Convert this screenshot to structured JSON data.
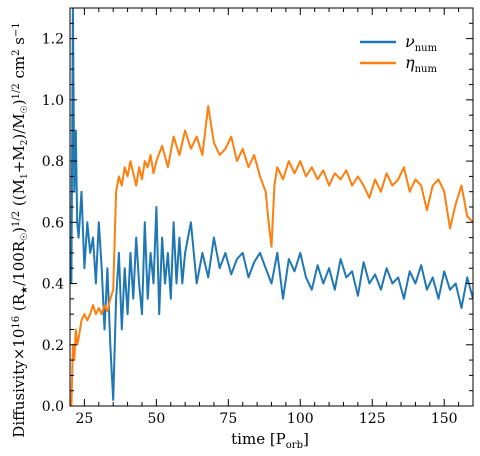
{
  "chart_data": {
    "type": "line",
    "xlabel_main": "time [P",
    "xlabel_sub": "orb",
    "xlabel_end": "]",
    "ylabel": "Diffusivity×10¹⁶ (R★/100R☉)^1/2 ((M₁+M₂)/M☉)^1/2 cm² s⁻¹",
    "xlim": [
      20,
      160
    ],
    "ylim": [
      0.0,
      1.3
    ],
    "xticks": [
      25,
      50,
      75,
      100,
      125,
      150
    ],
    "yticks": [
      0.0,
      0.2,
      0.4,
      0.6,
      0.8,
      1.0,
      1.2
    ],
    "legend_position": "top-right",
    "series": [
      {
        "name": "ν_num",
        "label_main": "ν",
        "label_sub": "num",
        "color": "#1f77b4",
        "x": [
          20.5,
          21,
          21.5,
          22,
          22.5,
          23,
          24,
          25,
          26,
          27,
          28,
          29,
          30,
          31,
          32,
          33,
          34,
          35,
          36,
          37,
          38,
          39,
          40,
          41,
          42,
          43,
          44,
          45,
          46,
          47,
          48,
          49,
          50,
          51,
          52,
          53,
          54,
          55,
          56,
          57,
          58,
          59,
          60,
          62,
          64,
          66,
          68,
          70,
          72,
          74,
          76,
          78,
          80,
          82,
          84,
          86,
          88,
          90,
          92,
          94,
          96,
          98,
          100,
          102,
          104,
          106,
          108,
          110,
          112,
          114,
          116,
          118,
          120,
          122,
          124,
          126,
          128,
          130,
          132,
          134,
          136,
          138,
          140,
          142,
          144,
          146,
          148,
          150,
          152,
          154,
          156,
          158,
          160
        ],
        "y": [
          0.4,
          1.3,
          0.7,
          0.9,
          0.6,
          0.55,
          0.7,
          0.45,
          0.6,
          0.5,
          0.55,
          0.4,
          0.6,
          0.45,
          0.25,
          0.45,
          0.2,
          0.02,
          0.35,
          0.5,
          0.25,
          0.45,
          0.3,
          0.5,
          0.35,
          0.55,
          0.4,
          0.3,
          0.6,
          0.35,
          0.5,
          0.4,
          0.65,
          0.3,
          0.55,
          0.4,
          0.5,
          0.35,
          0.6,
          0.4,
          0.55,
          0.4,
          0.5,
          0.6,
          0.4,
          0.5,
          0.42,
          0.55,
          0.45,
          0.5,
          0.43,
          0.48,
          0.5,
          0.42,
          0.47,
          0.5,
          0.45,
          0.4,
          0.5,
          0.35,
          0.48,
          0.44,
          0.5,
          0.42,
          0.38,
          0.46,
          0.4,
          0.45,
          0.38,
          0.48,
          0.42,
          0.44,
          0.36,
          0.47,
          0.4,
          0.43,
          0.38,
          0.45,
          0.4,
          0.42,
          0.35,
          0.44,
          0.4,
          0.46,
          0.38,
          0.42,
          0.35,
          0.44,
          0.38,
          0.4,
          0.32,
          0.42,
          0.35
        ]
      },
      {
        "name": "η_num",
        "label_main": "η",
        "label_sub": "num",
        "color": "#ff7f0e",
        "x": [
          20.5,
          21,
          21.5,
          22,
          22.5,
          23,
          24,
          25,
          26,
          27,
          28,
          29,
          30,
          31,
          32,
          33,
          34,
          35,
          36,
          37,
          38,
          39,
          40,
          41,
          42,
          43,
          44,
          45,
          46,
          47,
          48,
          49,
          50,
          52,
          54,
          56,
          58,
          60,
          62,
          64,
          66,
          68,
          70,
          72,
          74,
          76,
          78,
          80,
          82,
          84,
          86,
          88,
          89,
          90,
          91,
          92,
          94,
          96,
          98,
          100,
          102,
          104,
          106,
          108,
          110,
          112,
          114,
          116,
          118,
          120,
          122,
          124,
          126,
          128,
          130,
          132,
          134,
          136,
          138,
          140,
          142,
          144,
          146,
          148,
          150,
          152,
          154,
          156,
          158,
          160
        ],
        "y": [
          0.0,
          0.2,
          0.15,
          0.25,
          0.2,
          0.22,
          0.28,
          0.3,
          0.28,
          0.3,
          0.33,
          0.3,
          0.32,
          0.3,
          0.33,
          0.31,
          0.35,
          0.38,
          0.7,
          0.75,
          0.72,
          0.78,
          0.75,
          0.8,
          0.76,
          0.72,
          0.78,
          0.74,
          0.8,
          0.78,
          0.82,
          0.76,
          0.8,
          0.85,
          0.78,
          0.88,
          0.82,
          0.9,
          0.84,
          0.88,
          0.82,
          0.98,
          0.86,
          0.82,
          0.84,
          0.88,
          0.8,
          0.84,
          0.78,
          0.82,
          0.75,
          0.7,
          0.6,
          0.52,
          0.72,
          0.78,
          0.74,
          0.8,
          0.76,
          0.8,
          0.75,
          0.78,
          0.74,
          0.77,
          0.72,
          0.76,
          0.74,
          0.77,
          0.72,
          0.75,
          0.72,
          0.68,
          0.74,
          0.7,
          0.76,
          0.72,
          0.74,
          0.78,
          0.7,
          0.74,
          0.72,
          0.64,
          0.72,
          0.74,
          0.7,
          0.58,
          0.66,
          0.72,
          0.62,
          0.6
        ]
      }
    ]
  }
}
